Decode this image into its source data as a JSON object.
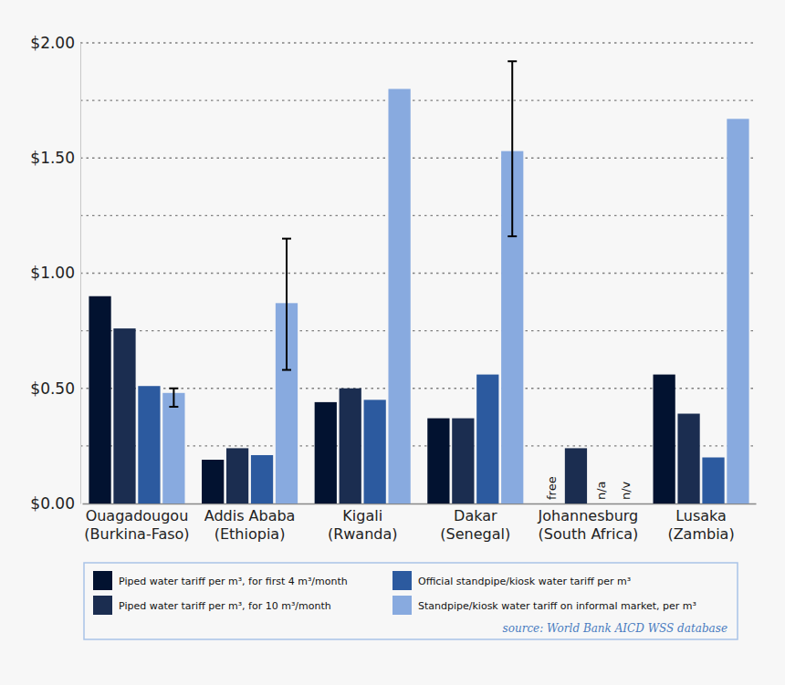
{
  "chart_data": {
    "type": "bar",
    "categories": [
      "Ouagadougou (Burkina-Faso)",
      "Addis Ababa (Ethiopia)",
      "Kigali (Rwanda)",
      "Dakar (Senegal)",
      "Johannesburg (South Africa)",
      "Lusaka (Zambia)"
    ],
    "series": [
      {
        "name": "Piped water tariff per m³, for first 4 m³/month",
        "color": "#021230",
        "values": [
          0.9,
          0.19,
          0.44,
          0.37,
          null,
          0.56
        ],
        "value_labels": [
          null,
          null,
          null,
          null,
          "free",
          null
        ]
      },
      {
        "name": "Piped water tariff per m³, for 10 m³/month",
        "color": "#1b2d50",
        "values": [
          0.76,
          0.24,
          0.5,
          0.37,
          0.24,
          0.39
        ]
      },
      {
        "name": "Official standpipe/kiosk water tariff per m³",
        "color": "#2c5a9f",
        "values": [
          0.51,
          0.21,
          0.45,
          0.56,
          null,
          0.2
        ],
        "value_labels": [
          null,
          null,
          null,
          null,
          "n/a",
          null
        ]
      },
      {
        "name": "Standpipe/kiosk water tariff on informal market, per m³",
        "color": "#88aadf",
        "values": [
          0.48,
          0.87,
          1.8,
          1.53,
          null,
          1.67
        ],
        "value_labels": [
          null,
          null,
          null,
          null,
          "n/v",
          null
        ],
        "error_range": [
          [
            0.42,
            0.5
          ],
          [
            0.58,
            1.15
          ],
          null,
          [
            1.16,
            1.92
          ],
          null,
          null
        ]
      }
    ],
    "ylim": [
      0,
      2
    ],
    "yticks": [
      {
        "value": 0,
        "label": "$0.00"
      },
      {
        "value": 0.5,
        "label": "$0.50"
      },
      {
        "value": 1,
        "label": "$1.00"
      },
      {
        "value": 1.5,
        "label": "$1.50"
      },
      {
        "value": 2,
        "label": "$2.00"
      }
    ],
    "minor_yticks": [
      0.25,
      0.75,
      1.25,
      1.75
    ],
    "grid": true,
    "legend": "bottom",
    "source": "source: World Bank AICD WSS database"
  }
}
